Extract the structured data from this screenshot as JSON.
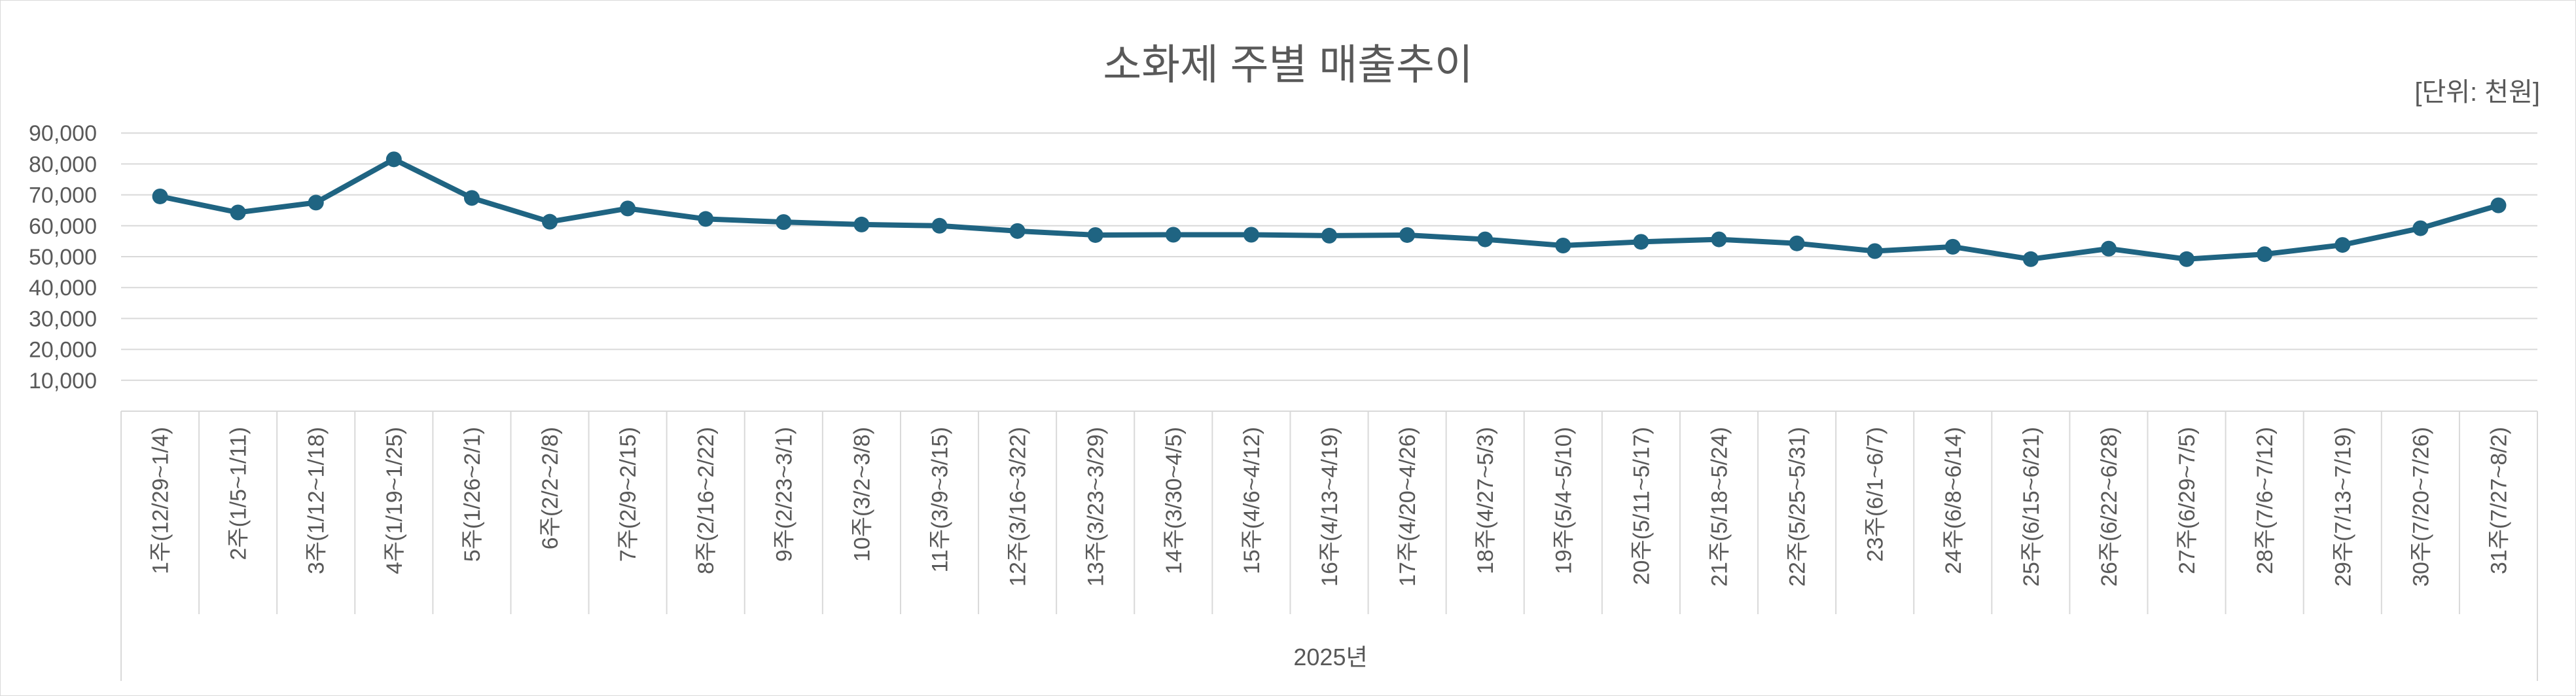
{
  "chart_data": {
    "type": "line",
    "title": "소화제 주별 매출추이",
    "unit_label": "[단위: 천원]",
    "xlabel": "2025년",
    "ylabel": "",
    "ylim": [
      0,
      90000
    ],
    "y_ticks": [
      "90,000",
      "80,000",
      "70,000",
      "60,000",
      "50,000",
      "40,000",
      "30,000",
      "20,000",
      "10,000"
    ],
    "y_tick_values": [
      90000,
      80000,
      70000,
      60000,
      50000,
      40000,
      30000,
      20000,
      10000
    ],
    "grid": true,
    "legend": "none",
    "series_color": "#1f6482",
    "categories": [
      "1주(12/29~1/4)",
      "2주(1/5~1/11)",
      "3주(1/12~1/18)",
      "4주(1/19~1/25)",
      "5주(1/26~2/1)",
      "6주(2/2~2/8)",
      "7주(2/9~2/15)",
      "8주(2/16~2/22)",
      "9주(2/23~3/1)",
      "10주(3/2~3/8)",
      "11주(3/9~3/15)",
      "12주(3/16~3/22)",
      "13주(3/23~3/29)",
      "14주(3/30~4/5)",
      "15주(4/6~4/12)",
      "16주(4/13~4/19)",
      "17주(4/20~4/26)",
      "18주(4/27~5/3)",
      "19주(5/4~5/10)",
      "20주(5/11~5/17)",
      "21주(5/18~5/24)",
      "22주(5/25~5/31)",
      "23주(6/1~6/7)",
      "24주(6/8~6/14)",
      "25주(6/15~6/21)",
      "26주(6/22~6/28)",
      "27주(6/29~7/5)",
      "28주(7/6~7/12)",
      "29주(7/13~7/19)",
      "30주(7/20~7/26)",
      "31주(7/27~8/2)"
    ],
    "series": [
      {
        "name": "매출",
        "values": [
          69500,
          64300,
          67500,
          81500,
          69000,
          61300,
          65600,
          62200,
          61200,
          60400,
          60000,
          58300,
          57000,
          57100,
          57100,
          56800,
          57000,
          55600,
          53600,
          54800,
          55600,
          54300,
          51800,
          53200,
          49200,
          52600,
          49200,
          50800,
          53800,
          59200,
          66600
        ]
      }
    ]
  }
}
